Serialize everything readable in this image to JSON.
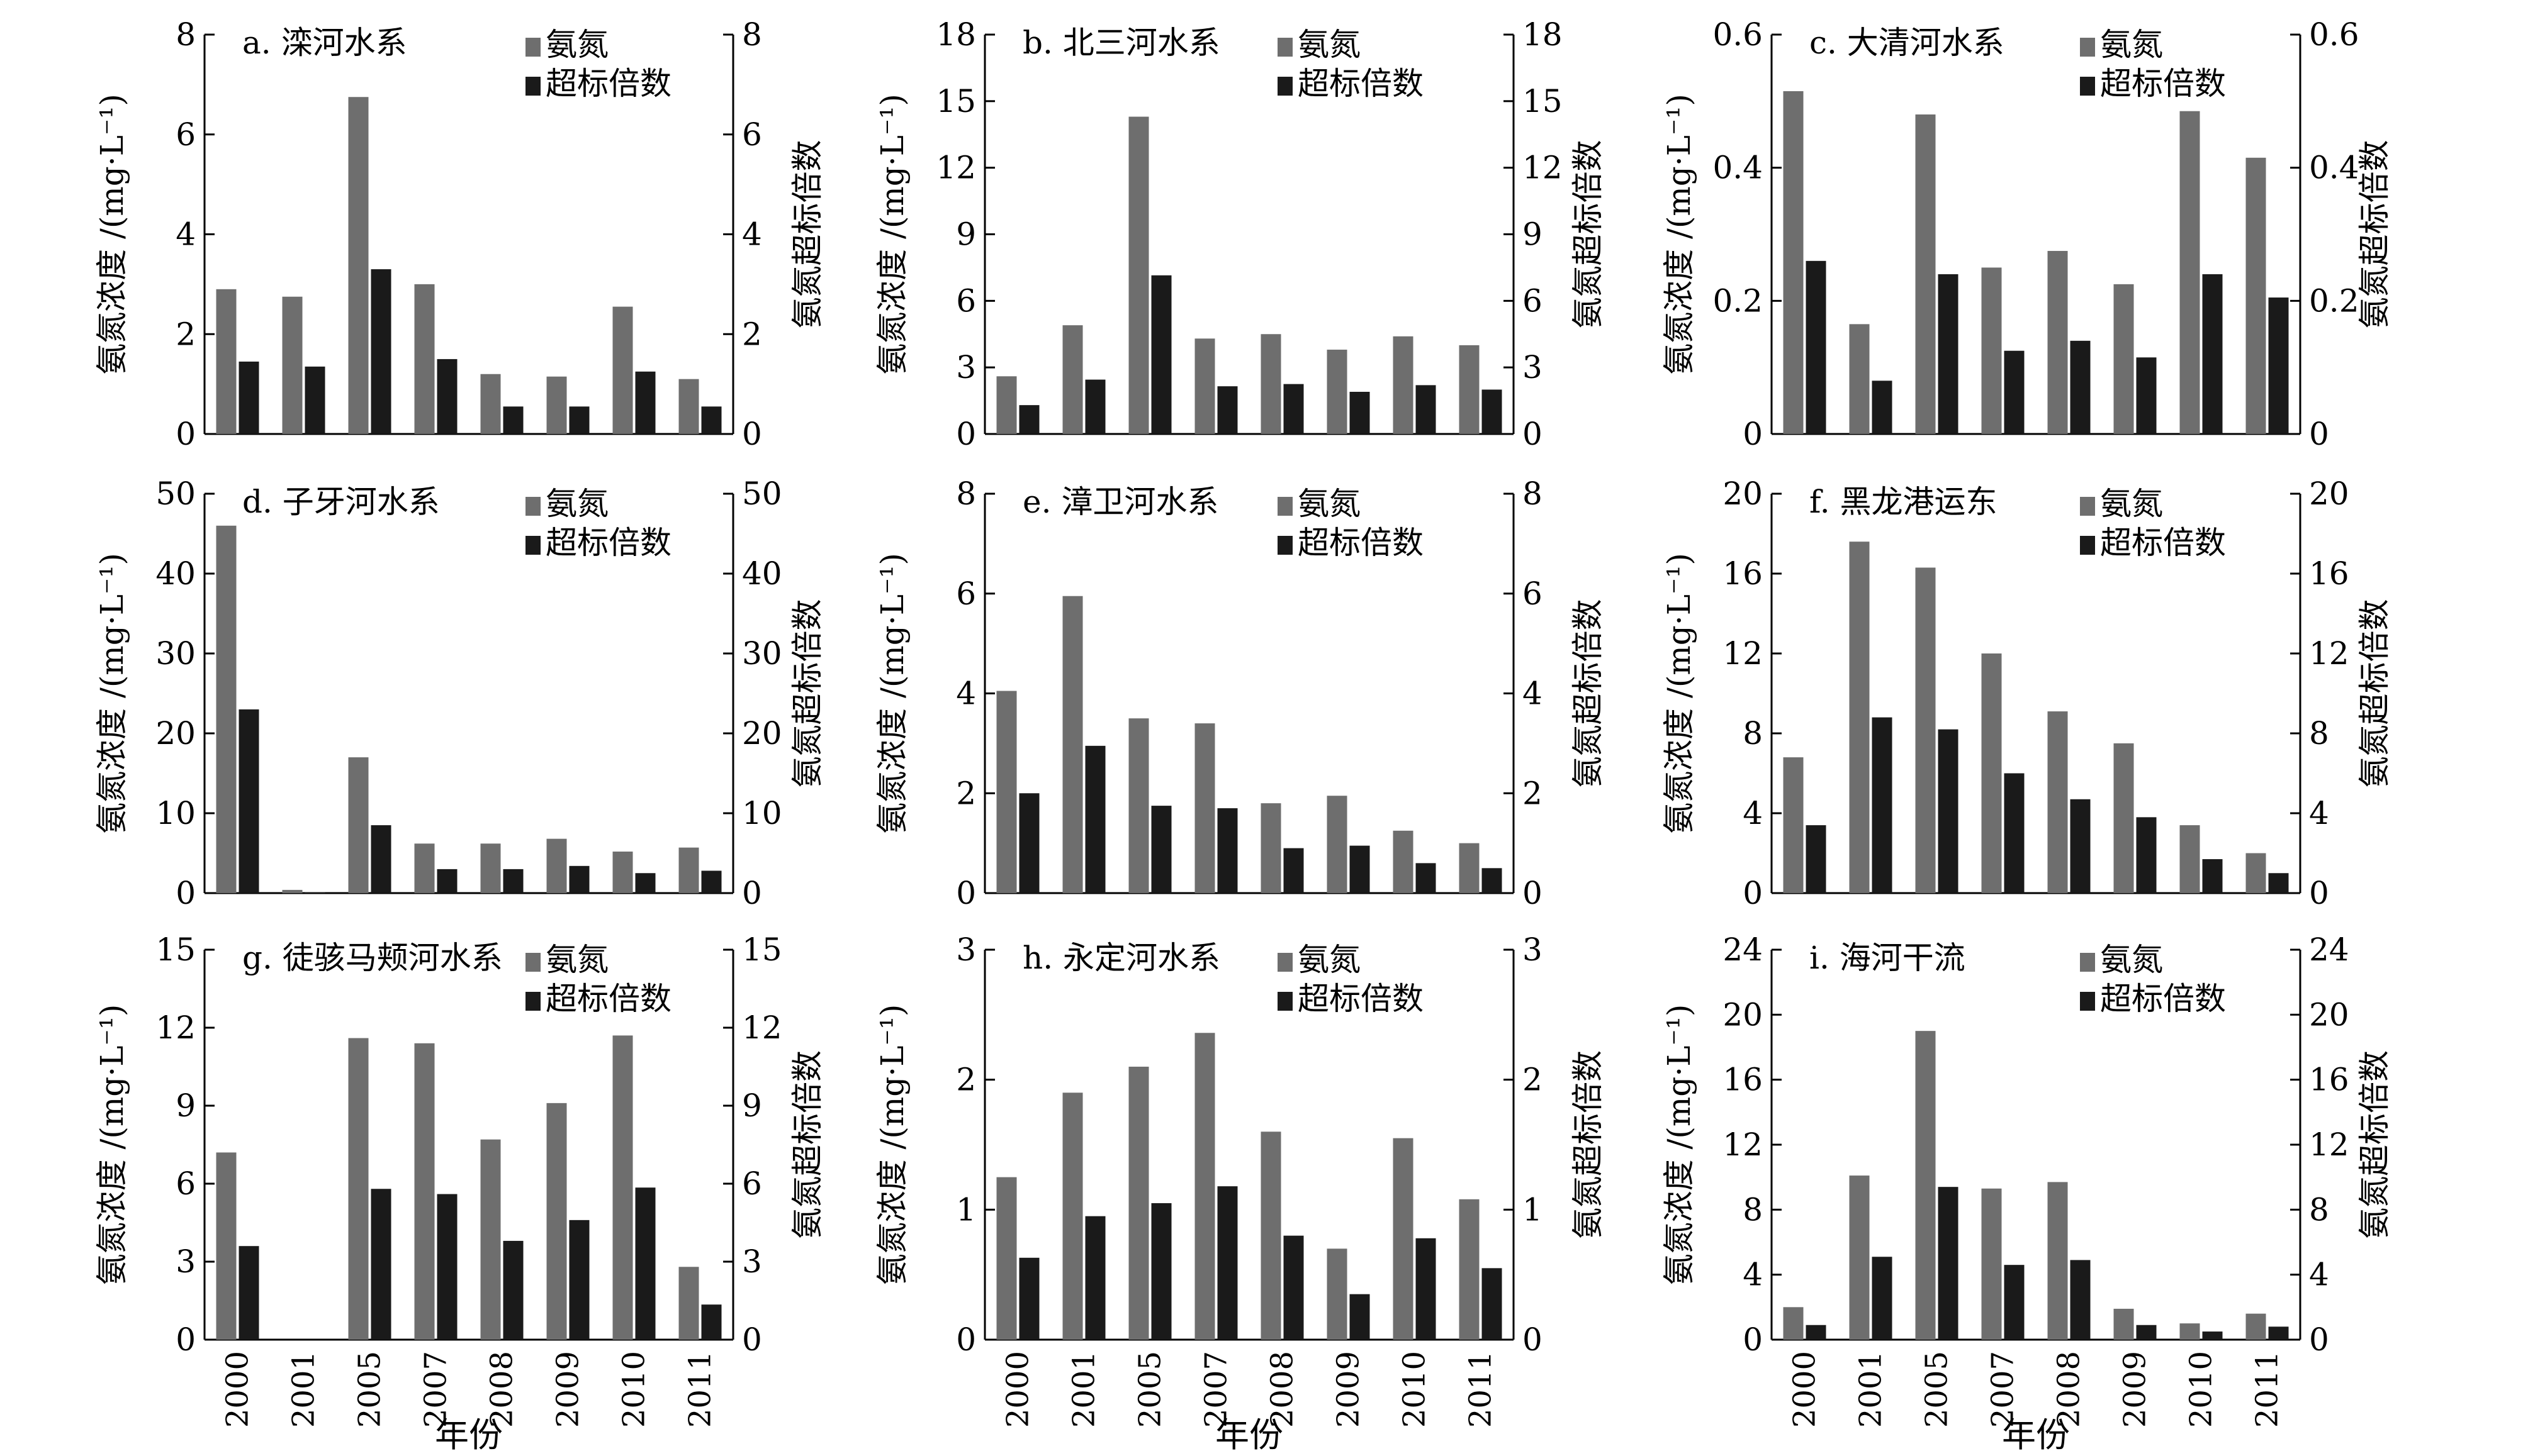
{
  "colors": {
    "nh3": "#6e6e6e",
    "ratio": "#1a1a1a"
  },
  "legend": {
    "nh3_label": "氨氮",
    "ratio_label": "超标倍数"
  },
  "years": [
    "2000",
    "2001",
    "2005",
    "2007",
    "2008",
    "2009",
    "2010",
    "2011"
  ],
  "xlabel": "年份",
  "chart_data": [
    {
      "type": "bar",
      "title": "a. 滦河水系",
      "ylabel": "氨氮浓度 /(mg·L⁻¹)",
      "y2label": "氨氮超标倍数",
      "ylim": [
        0,
        8
      ],
      "ticks": [
        "0",
        "2",
        "4",
        "6",
        "8"
      ],
      "series": [
        {
          "name": "氨氮",
          "values": [
            2.9,
            2.75,
            6.75,
            3.0,
            1.2,
            1.15,
            2.55,
            1.1
          ]
        },
        {
          "name": "超标倍数",
          "values": [
            1.45,
            1.35,
            3.3,
            1.5,
            0.55,
            0.55,
            1.25,
            0.55
          ]
        }
      ]
    },
    {
      "type": "bar",
      "title": "b. 北三河水系",
      "ylabel": "氨氮浓度 /(mg·L⁻¹)",
      "y2label": "氨氮超标倍数",
      "ylim": [
        0,
        18
      ],
      "ticks": [
        "0",
        "3",
        "6",
        "9",
        "12",
        "15",
        "18"
      ],
      "series": [
        {
          "name": "氨氮",
          "values": [
            2.6,
            4.9,
            14.3,
            4.3,
            4.5,
            3.8,
            4.4,
            4.0
          ]
        },
        {
          "name": "超标倍数",
          "values": [
            1.3,
            2.45,
            7.15,
            2.15,
            2.25,
            1.9,
            2.2,
            2.0
          ]
        }
      ]
    },
    {
      "type": "bar",
      "title": "c. 大清河水系",
      "ylabel": "氨氮浓度 /(mg·L⁻¹)",
      "y2label": "氨氮超标倍数",
      "ylim": [
        0,
        0.6
      ],
      "ticks": [
        "0",
        "0.2",
        "0.4",
        "0.6"
      ],
      "series": [
        {
          "name": "氨氮",
          "values": [
            0.515,
            0.165,
            0.48,
            0.25,
            0.275,
            0.225,
            0.485,
            0.415
          ]
        },
        {
          "name": "超标倍数",
          "values": [
            0.26,
            0.08,
            0.24,
            0.125,
            0.14,
            0.115,
            0.24,
            0.205
          ]
        }
      ]
    },
    {
      "type": "bar",
      "title": "d. 子牙河水系",
      "ylabel": "氨氮浓度 /(mg·L⁻¹)",
      "y2label": "氨氮超标倍数",
      "ylim": [
        0,
        50
      ],
      "ticks": [
        "0",
        "10",
        "20",
        "30",
        "40",
        "50"
      ],
      "series": [
        {
          "name": "氨氮",
          "values": [
            46,
            0.4,
            17,
            6.2,
            6.2,
            6.8,
            5.2,
            5.7
          ]
        },
        {
          "name": "超标倍数",
          "values": [
            23,
            0.1,
            8.5,
            3.0,
            3.0,
            3.4,
            2.5,
            2.8
          ]
        }
      ]
    },
    {
      "type": "bar",
      "title": "e. 漳卫河水系",
      "ylabel": "氨氮浓度 /(mg·L⁻¹)",
      "y2label": "氨氮超标倍数",
      "ylim": [
        0,
        8
      ],
      "ticks": [
        "0",
        "2",
        "4",
        "6",
        "8"
      ],
      "series": [
        {
          "name": "氨氮",
          "values": [
            4.05,
            5.95,
            3.5,
            3.4,
            1.8,
            1.95,
            1.25,
            1.0
          ]
        },
        {
          "name": "超标倍数",
          "values": [
            2.0,
            2.95,
            1.75,
            1.7,
            0.9,
            0.95,
            0.6,
            0.5
          ]
        }
      ]
    },
    {
      "type": "bar",
      "title": "f. 黑龙港运东",
      "ylabel": "氨氮浓度 /(mg·L⁻¹)",
      "y2label": "氨氮超标倍数",
      "ylim": [
        0,
        20
      ],
      "ticks": [
        "0",
        "4",
        "8",
        "12",
        "16",
        "20"
      ],
      "series": [
        {
          "name": "氨氮",
          "values": [
            6.8,
            17.6,
            16.3,
            12.0,
            9.1,
            7.5,
            3.4,
            2.0
          ]
        },
        {
          "name": "超标倍数",
          "values": [
            3.4,
            8.8,
            8.2,
            6.0,
            4.7,
            3.8,
            1.7,
            1.0
          ]
        }
      ]
    },
    {
      "type": "bar",
      "title": "g. 徒骇马颊河水系",
      "ylabel": "氨氮浓度 /(mg·L⁻¹)",
      "y2label": "氨氮超标倍数",
      "ylim": [
        0,
        15
      ],
      "ticks": [
        "0",
        "3",
        "6",
        "9",
        "12",
        "15"
      ],
      "series": [
        {
          "name": "氨氮",
          "values": [
            7.2,
            0,
            11.6,
            11.4,
            7.7,
            9.1,
            11.7,
            2.8
          ]
        },
        {
          "name": "超标倍数",
          "values": [
            3.6,
            0,
            5.8,
            5.6,
            3.8,
            4.6,
            5.85,
            1.35
          ]
        }
      ]
    },
    {
      "type": "bar",
      "title": "h. 永定河水系",
      "ylabel": "氨氮浓度 /(mg·L⁻¹)",
      "y2label": "氨氮超标倍数",
      "ylim": [
        0,
        3
      ],
      "ticks": [
        "0",
        "1",
        "2",
        "3"
      ],
      "series": [
        {
          "name": "氨氮",
          "values": [
            1.25,
            1.9,
            2.1,
            2.36,
            1.6,
            0.7,
            1.55,
            1.08
          ]
        },
        {
          "name": "超标倍数",
          "values": [
            0.63,
            0.95,
            1.05,
            1.18,
            0.8,
            0.35,
            0.78,
            0.55
          ]
        }
      ]
    },
    {
      "type": "bar",
      "title": "i. 海河干流",
      "ylabel": "氨氮浓度 /(mg·L⁻¹)",
      "y2label": "氨氮超标倍数",
      "ylim": [
        0,
        24
      ],
      "ticks": [
        "0",
        "4",
        "8",
        "12",
        "16",
        "20",
        "24"
      ],
      "series": [
        {
          "name": "氨氮",
          "values": [
            2.0,
            10.1,
            19.0,
            9.3,
            9.7,
            1.9,
            1.0,
            1.6
          ]
        },
        {
          "name": "超标倍数",
          "values": [
            0.9,
            5.1,
            9.4,
            4.6,
            4.9,
            0.9,
            0.5,
            0.8
          ]
        }
      ]
    }
  ]
}
